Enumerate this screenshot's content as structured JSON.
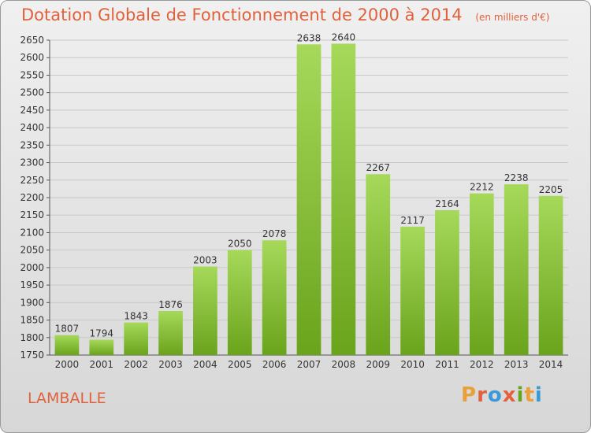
{
  "header": {
    "title": "Dotation Globale de Fonctionnement de 2000 à 2014",
    "subtitle": "(en milliers d'€)"
  },
  "footer": {
    "city": "LAMBALLE",
    "logo": [
      "P",
      "r",
      "o",
      "x",
      "i",
      "t",
      "i"
    ]
  },
  "colors": {
    "title": "#e0613c",
    "bar_light": "#a6d95a",
    "bar_dark": "#6aa31c",
    "logo": [
      "#e8a13a",
      "#e0613c",
      "#3a9ad9",
      "#e0613c",
      "#6aa31c",
      "#e8a13a",
      "#3a9ad9"
    ]
  },
  "chart_data": {
    "type": "bar",
    "title": "Dotation Globale de Fonctionnement de 2000 à 2014",
    "subtitle": "(en milliers d'€)",
    "categories": [
      "2000",
      "2001",
      "2002",
      "2003",
      "2004",
      "2005",
      "2006",
      "2007",
      "2008",
      "2009",
      "2010",
      "2011",
      "2012",
      "2013",
      "2014"
    ],
    "values": [
      1807,
      1794,
      1843,
      1876,
      2003,
      2050,
      2078,
      2638,
      2640,
      2267,
      2117,
      2164,
      2212,
      2238,
      2205
    ],
    "ylim": [
      1750,
      2650
    ],
    "yticks": [
      1750,
      1800,
      1850,
      1900,
      1950,
      2000,
      2050,
      2100,
      2150,
      2200,
      2250,
      2300,
      2350,
      2400,
      2450,
      2500,
      2550,
      2600,
      2650
    ],
    "xlabel": "",
    "ylabel": "",
    "grid": true,
    "data_labels": true
  }
}
